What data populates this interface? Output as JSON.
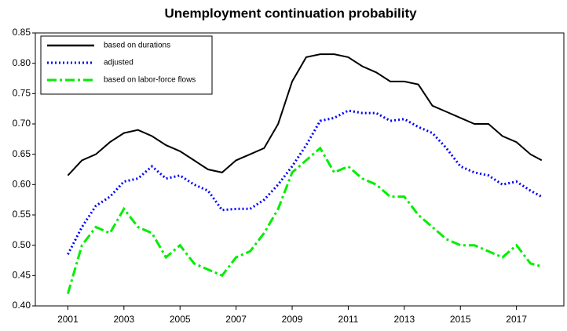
{
  "chart_data": {
    "type": "line",
    "title": "Unemployment continuation probability",
    "x": [
      2001,
      2001.5,
      2002,
      2002.5,
      2003,
      2003.5,
      2004,
      2004.5,
      2005,
      2005.5,
      2006,
      2006.5,
      2007,
      2007.5,
      2008,
      2008.5,
      2009,
      2009.5,
      2010,
      2010.5,
      2011,
      2011.5,
      2012,
      2012.5,
      2013,
      2013.5,
      2014,
      2014.5,
      2015,
      2015.5,
      2016,
      2016.5,
      2017,
      2017.5,
      2017.9
    ],
    "series": [
      {
        "name": "based on durations",
        "color": "#000000",
        "dash": "solid",
        "values": [
          0.615,
          0.64,
          0.65,
          0.67,
          0.685,
          0.69,
          0.68,
          0.665,
          0.655,
          0.64,
          0.625,
          0.62,
          0.64,
          0.65,
          0.66,
          0.7,
          0.77,
          0.81,
          0.815,
          0.815,
          0.81,
          0.795,
          0.785,
          0.77,
          0.77,
          0.765,
          0.73,
          0.72,
          0.71,
          0.7,
          0.7,
          0.68,
          0.67,
          0.65,
          0.64
        ]
      },
      {
        "name": "adjusted",
        "color": "#0000ff",
        "dash": "dotted",
        "values": [
          0.485,
          0.53,
          0.565,
          0.58,
          0.605,
          0.61,
          0.63,
          0.61,
          0.615,
          0.6,
          0.59,
          0.558,
          0.56,
          0.56,
          0.575,
          0.6,
          0.63,
          0.665,
          0.705,
          0.71,
          0.722,
          0.718,
          0.718,
          0.705,
          0.708,
          0.695,
          0.685,
          0.66,
          0.63,
          0.62,
          0.615,
          0.6,
          0.605,
          0.59,
          0.58
        ]
      },
      {
        "name": "based on labor-force flows",
        "color": "#00ee00",
        "dash": "dashdot",
        "values": [
          0.42,
          0.5,
          0.53,
          0.52,
          0.56,
          0.53,
          0.52,
          0.48,
          0.5,
          0.47,
          0.46,
          0.45,
          0.48,
          0.49,
          0.52,
          0.56,
          0.62,
          0.64,
          0.66,
          0.62,
          0.63,
          0.61,
          0.6,
          0.58,
          0.58,
          0.55,
          0.53,
          0.51,
          0.5,
          0.5,
          0.49,
          0.48,
          0.5,
          0.47,
          0.465
        ]
      }
    ],
    "xlim": [
      1999.84,
      2018.69
    ],
    "xticks": [
      2001,
      2003,
      2005,
      2007,
      2009,
      2011,
      2013,
      2015,
      2017
    ],
    "ylim": [
      0.4,
      0.85
    ],
    "yticks": [
      0.85,
      {
        "value": 0.8,
        "label": "0.80"
      },
      0.75,
      {
        "value": 0.7,
        "label": "0.70"
      },
      0.65,
      {
        "value": 0.6,
        "label": "0.60"
      },
      0.55,
      {
        "value": 0.5,
        "label": "0.50"
      },
      0.45,
      {
        "value": 0.4,
        "label": "0.40"
      }
    ],
    "legend": "upper left"
  }
}
